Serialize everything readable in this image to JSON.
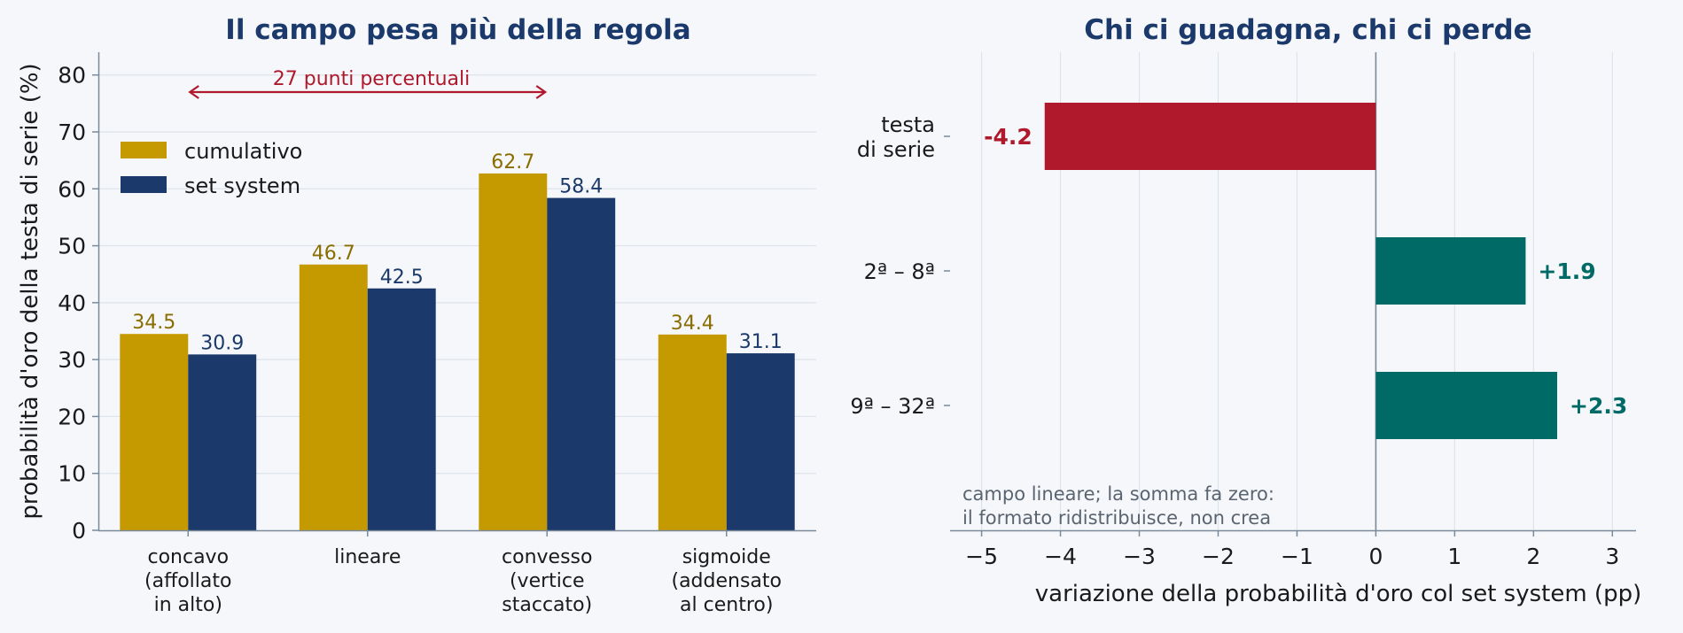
{
  "colors": {
    "background": "#f5f7fb",
    "title": "#1b3a6b",
    "cumulativo": "#c49a00",
    "cumulativo_label": "#8a6d00",
    "set_system": "#1b3a6b",
    "negative": "#b0192c",
    "positive": "#006b66",
    "axis": "#7a8a9a",
    "grid": "#dde3ea",
    "note": "#5a6470"
  },
  "chart_data": [
    {
      "type": "bar",
      "title": "Il campo pesa più della regola",
      "xlabel": "",
      "ylabel": "probabilità d'oro della testa di serie (%)",
      "categories": [
        "concavo\n(affollato\nin alto)",
        "lineare",
        "convesso\n(vertice\nstaccato)",
        "sigmoide\n(addensato\nal centro)"
      ],
      "series": [
        {
          "name": "cumulativo",
          "values": [
            34.5,
            46.7,
            62.7,
            34.4
          ]
        },
        {
          "name": "set system",
          "values": [
            30.9,
            42.5,
            58.4,
            31.1
          ]
        }
      ],
      "ylim": [
        0,
        84
      ],
      "yticks": [
        0,
        10,
        20,
        30,
        40,
        50,
        60,
        70,
        80
      ],
      "grid": "horizontal",
      "legend": "top-left",
      "annotation": {
        "text": "27 punti percentuali",
        "from": 0,
        "to": 2,
        "y": 77
      }
    },
    {
      "type": "bar",
      "orientation": "horizontal",
      "title": "Chi ci guadagna, chi ci perde",
      "xlabel": "variazione della probabilità d'oro col set system (pp)",
      "ylabel": "",
      "categories": [
        "testa\ndi serie",
        "2ª – 8ª",
        "9ª – 32ª"
      ],
      "values": [
        -4.2,
        1.9,
        2.3
      ],
      "value_labels": [
        "-4.2",
        "+1.9",
        "+2.3"
      ],
      "xlim": [
        -5.4,
        3.3
      ],
      "xticks": [
        -5,
        -4,
        -3,
        -2,
        -1,
        0,
        1,
        2,
        3
      ],
      "xtick_labels": [
        "−5",
        "−4",
        "−3",
        "−2",
        "−1",
        "0",
        "1",
        "2",
        "3"
      ],
      "grid": "vertical",
      "note": [
        "campo lineare; la somma fa zero:",
        "il formato ridistribuisce, non crea"
      ]
    }
  ]
}
